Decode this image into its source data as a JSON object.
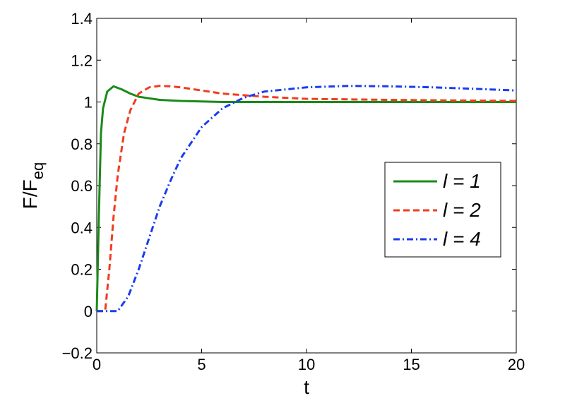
{
  "chart_data": {
    "type": "line",
    "xlabel": "t",
    "ylabel": "F/F",
    "ylabel_subscript": "eq",
    "xlim": [
      0,
      20
    ],
    "ylim": [
      -0.2,
      1.4
    ],
    "xticks": [
      0,
      5,
      10,
      15,
      20
    ],
    "yticks": [
      {
        "value": -0.2,
        "label": "−0.2"
      },
      0,
      0.2,
      0.4,
      0.6,
      0.8,
      1,
      1.2,
      1.4
    ],
    "grid": false,
    "legend": "right",
    "series": [
      {
        "name": "l = 1",
        "color": "#1a8a1a",
        "dash": "solid",
        "x": [
          0,
          0.1,
          0.2,
          0.3,
          0.5,
          0.8,
          1.2,
          1.6,
          2,
          3,
          4,
          6,
          10,
          20
        ],
        "values": [
          0,
          0.45,
          0.85,
          0.97,
          1.05,
          1.075,
          1.06,
          1.04,
          1.025,
          1.01,
          1.005,
          1.0,
          1.0,
          1.0
        ]
      },
      {
        "name": "l = 2",
        "color": "#f03c1e",
        "dash": "dashed",
        "x": [
          0,
          0.4,
          0.6,
          0.8,
          1,
          1.3,
          1.6,
          2,
          2.5,
          3,
          3.5,
          4,
          5,
          6,
          8,
          10,
          14,
          20
        ],
        "values": [
          0,
          0,
          0.2,
          0.45,
          0.65,
          0.85,
          0.96,
          1.04,
          1.07,
          1.077,
          1.075,
          1.07,
          1.055,
          1.04,
          1.025,
          1.015,
          1.01,
          1.005
        ]
      },
      {
        "name": "l = 4",
        "color": "#1a3cf0",
        "dash": "dashdot",
        "x": [
          0,
          1,
          1.5,
          2,
          2.5,
          3,
          3.5,
          4,
          5,
          6,
          7,
          8,
          10,
          12,
          14,
          16,
          18,
          20
        ],
        "values": [
          0,
          0,
          0.07,
          0.2,
          0.35,
          0.5,
          0.62,
          0.73,
          0.88,
          0.97,
          1.02,
          1.05,
          1.07,
          1.077,
          1.075,
          1.07,
          1.063,
          1.055
        ]
      }
    ]
  }
}
